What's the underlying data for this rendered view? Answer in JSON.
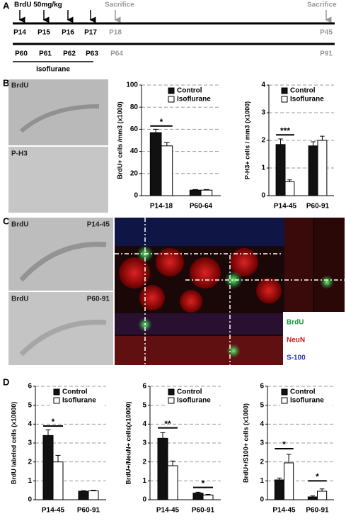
{
  "panel_labels": [
    "A",
    "B",
    "C",
    "D"
  ],
  "timeline": {
    "dose": "BrdU 50mg/kg",
    "sacrifice": [
      "Sacrifice",
      "Sacrifice"
    ],
    "row1": [
      "P14",
      "P15",
      "P16",
      "P17",
      "P18",
      "P45"
    ],
    "row2": [
      "P60",
      "P61",
      "P62",
      "P63",
      "P64",
      "P91"
    ],
    "treatment": "Isoflurane"
  },
  "images": {
    "b": [
      "BrdU",
      "P-H3"
    ],
    "c": [
      {
        "stain": "BrdU",
        "age": "P14-45"
      },
      {
        "stain": "BrdU",
        "age": "P60-91"
      }
    ],
    "channels": [
      "BrdU",
      "NeuN",
      "S-100"
    ]
  },
  "chart_data": [
    {
      "type": "bar",
      "y_label": "BrdU+ cells /mm3 (x1000)",
      "categories": [
        "P14-18",
        "P60-64"
      ],
      "series": [
        {
          "name": "Control",
          "color": "#111111",
          "values": [
            57,
            5
          ],
          "errors": [
            3,
            0.5
          ]
        },
        {
          "name": "Isoflurane",
          "color": "#ffffff",
          "values": [
            45,
            5
          ],
          "errors": [
            3,
            0.5
          ]
        }
      ],
      "ylim": [
        0,
        100
      ],
      "yticks": [
        0,
        20,
        40,
        60,
        80,
        100
      ],
      "grid": true,
      "legend": "upper right",
      "annotations": [
        {
          "text": "*",
          "x": "P14-18",
          "y": 63
        }
      ]
    },
    {
      "type": "bar",
      "y_label": "P-H3+ cells / mm3 (x1000)",
      "categories": [
        "P14-45",
        "P60-91"
      ],
      "series": [
        {
          "name": "Control",
          "color": "#111111",
          "values": [
            1.85,
            1.8
          ],
          "errors": [
            0.2,
            0.15
          ]
        },
        {
          "name": "Isoflurane",
          "color": "#ffffff",
          "values": [
            0.5,
            2.0
          ],
          "errors": [
            0.07,
            0.15
          ]
        }
      ],
      "ylim": [
        0,
        4
      ],
      "yticks": [
        0,
        1,
        2,
        3,
        4
      ],
      "grid": true,
      "legend": "upper right",
      "annotations": [
        {
          "text": "***",
          "x": "P14-45",
          "y": 2.2
        }
      ]
    },
    {
      "type": "bar",
      "y_label": "BrdU labeled cells (x10000)",
      "categories": [
        "P14-45",
        "P60-91"
      ],
      "series": [
        {
          "name": "Control",
          "color": "#111111",
          "values": [
            3.4,
            0.45
          ],
          "errors": [
            0.3,
            0.03
          ]
        },
        {
          "name": "Isoflurane",
          "color": "#ffffff",
          "values": [
            2.0,
            0.47
          ],
          "errors": [
            0.35,
            0.03
          ]
        }
      ],
      "ylim": [
        0,
        6
      ],
      "yticks": [
        0,
        1,
        2,
        3,
        4,
        5,
        6
      ],
      "grid": true,
      "legend": "upper right",
      "annotations": [
        {
          "text": "*",
          "x": "P14-45",
          "y": 3.9
        }
      ]
    },
    {
      "type": "bar",
      "y_label": "BrdU+/NeuN+ cells(x10000)",
      "categories": [
        "P14-45",
        "P60-91"
      ],
      "series": [
        {
          "name": "Control",
          "color": "#111111",
          "values": [
            3.25,
            0.35
          ],
          "errors": [
            0.3,
            0.05
          ]
        },
        {
          "name": "Isoflurane",
          "color": "#ffffff",
          "values": [
            1.8,
            0.25
          ],
          "errors": [
            0.25,
            0.03
          ]
        }
      ],
      "ylim": [
        0,
        6
      ],
      "yticks": [
        0,
        1,
        2,
        3,
        4,
        5,
        6
      ],
      "grid": true,
      "legend": "upper right",
      "annotations": [
        {
          "text": "**",
          "x": "P14-45",
          "y": 3.8
        },
        {
          "text": "*",
          "x": "P60-91",
          "y": 0.65
        }
      ]
    },
    {
      "type": "bar",
      "y_label": "BrdU+/S100+ cells (x1000)",
      "categories": [
        "P14-45",
        "P60-91"
      ],
      "series": [
        {
          "name": "Control",
          "color": "#111111",
          "values": [
            1.05,
            0.15
          ],
          "errors": [
            0.1,
            0.05
          ]
        },
        {
          "name": "Isoflurane",
          "color": "#ffffff",
          "values": [
            1.95,
            0.45
          ],
          "errors": [
            0.45,
            0.12
          ]
        }
      ],
      "ylim": [
        0,
        6
      ],
      "yticks": [
        0,
        1,
        2,
        3,
        4,
        5,
        6
      ],
      "grid": true,
      "legend": "upper right",
      "annotations": [
        {
          "text": "*",
          "x": "P14-45",
          "y": 2.7
        },
        {
          "text": "*",
          "x": "P60-91",
          "y": 1.0
        }
      ]
    }
  ]
}
